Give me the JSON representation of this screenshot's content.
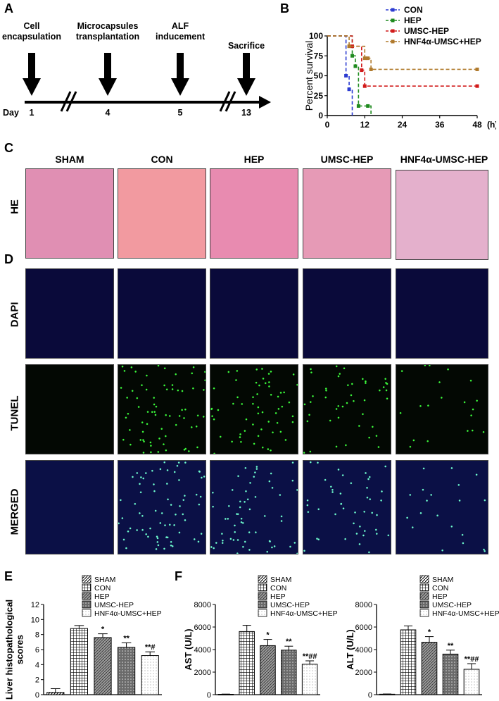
{
  "panel_labels": {
    "a": "A",
    "b": "B",
    "c": "C",
    "d": "D",
    "e": "E",
    "f": "F"
  },
  "timeline": {
    "events": [
      {
        "label": "Cell\nencapsulation",
        "day": "1"
      },
      {
        "label": "Microcapsules\ntransplantation",
        "day": "4"
      },
      {
        "label": "ALF\ninducement",
        "day": "5"
      },
      {
        "label": "Sacrifice",
        "day": "13"
      }
    ],
    "day_label": "Day"
  },
  "columns": [
    "SHAM",
    "CON",
    "HEP",
    "UMSC-HEP",
    "HNF4α-UMSC-HEP"
  ],
  "rows": {
    "he": "HE",
    "dapi": "DAPI",
    "tunel": "TUNEL",
    "merged": "MERGED"
  },
  "colors": {
    "CON": "#2b3bd1",
    "HEP": "#1e8a1e",
    "UMSC-HEP": "#d11a1a",
    "HNF4α-UMSC+HEP": "#b07a2c"
  },
  "chart_data": [
    {
      "type": "line",
      "ylabel": "Percent survival",
      "xlabel": "(h)",
      "xlim": [
        0,
        48
      ],
      "ylim": [
        0,
        100
      ],
      "xticks": [
        0,
        12,
        24,
        36,
        48
      ],
      "yticks": [
        0,
        25,
        50,
        75,
        100
      ],
      "legend": "top-right",
      "series": [
        {
          "name": "CON",
          "x": [
            0,
            5,
            6,
            7,
            8,
            8
          ],
          "y": [
            100,
            100,
            50,
            33,
            0,
            0
          ]
        },
        {
          "name": "HEP",
          "x": [
            0,
            7,
            8,
            9,
            10,
            13,
            14
          ],
          "y": [
            100,
            100,
            75,
            62,
            12,
            12,
            0
          ]
        },
        {
          "name": "UMSC-HEP",
          "x": [
            0,
            8,
            11,
            12,
            48
          ],
          "y": [
            100,
            87,
            57,
            37,
            37
          ]
        },
        {
          "name": "HNF4α-UMSC+HEP",
          "x": [
            0,
            7,
            12,
            13,
            14,
            48
          ],
          "y": [
            100,
            87,
            72,
            72,
            58,
            58
          ]
        }
      ]
    },
    {
      "type": "bar",
      "ylabel": "Liver histopathological\nscores",
      "categories": [
        "SHAM",
        "CON",
        "HEP",
        "UMSC-HEP",
        "HNF4α-UMSC+HEP"
      ],
      "values": [
        0.3,
        8.8,
        7.6,
        6.3,
        5.2
      ],
      "errors": [
        0.5,
        0.4,
        0.5,
        0.6,
        0.5
      ],
      "annotations": [
        "",
        "",
        "*",
        "**",
        "**#"
      ],
      "ylim": [
        0,
        12
      ],
      "yticks": [
        0,
        2,
        4,
        6,
        8,
        10,
        12
      ],
      "legend": "top"
    },
    {
      "type": "bar",
      "ylabel": "AST (U/L)",
      "categories": [
        "SHAM",
        "CON",
        "HEP",
        "UMSC-HEP",
        "HNF4α-UMSC+HEP"
      ],
      "values": [
        30,
        5600,
        4350,
        3950,
        2700
      ],
      "errors": [
        20,
        550,
        550,
        350,
        300
      ],
      "annotations": [
        "",
        "",
        "*",
        "**",
        "**##"
      ],
      "ylim": [
        0,
        8000
      ],
      "yticks": [
        0,
        2000,
        4000,
        6000,
        8000
      ],
      "legend": "top"
    },
    {
      "type": "bar",
      "ylabel": "ALT (U/L)",
      "categories": [
        "SHAM",
        "CON",
        "HEP",
        "UMSC-HEP",
        "HNF4α-UMSC+HEP"
      ],
      "values": [
        40,
        5750,
        4650,
        3600,
        2250
      ],
      "errors": [
        20,
        350,
        500,
        350,
        500
      ],
      "annotations": [
        "",
        "",
        "*",
        "**",
        "**##"
      ],
      "ylim": [
        0,
        8000
      ],
      "yticks": [
        0,
        2000,
        4000,
        6000,
        8000
      ],
      "legend": "top"
    }
  ]
}
